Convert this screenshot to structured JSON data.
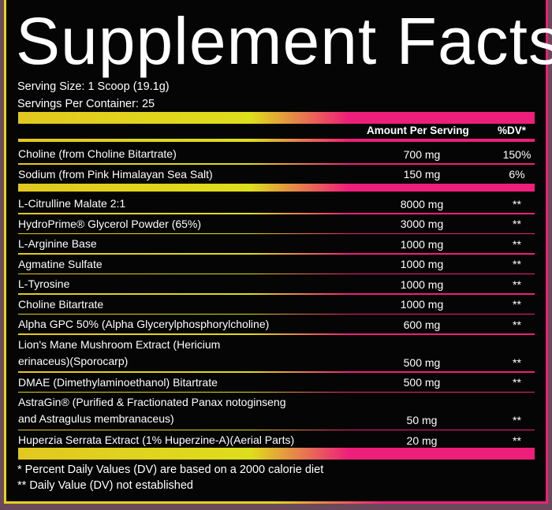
{
  "title": "Supplement Facts",
  "serving_size": "Serving Size: 1 Scoop (19.1g)",
  "servings_per_container": "Servings Per Container: 25",
  "header": {
    "amount": "Amount Per Serving",
    "dv": "%DV*"
  },
  "nutrients": [
    {
      "name": "Choline (from Choline Bitartrate)",
      "amount": "700 mg",
      "dv": "150%"
    },
    {
      "name": "Sodium (from Pink Himalayan Sea Salt)",
      "amount": "150 mg",
      "dv": "6%"
    }
  ],
  "ingredients": [
    {
      "name": "L-Citrulline Malate 2:1",
      "amount": "8000 mg",
      "dv": "**"
    },
    {
      "name": "HydroPrime® Glycerol Powder (65%)",
      "amount": "3000 mg",
      "dv": "**"
    },
    {
      "name": "L-Arginine Base",
      "amount": "1000 mg",
      "dv": "**"
    },
    {
      "name": "Agmatine Sulfate",
      "amount": "1000 mg",
      "dv": "**"
    },
    {
      "name": "L-Tyrosine",
      "amount": "1000 mg",
      "dv": "**"
    },
    {
      "name": "Choline Bitartrate",
      "amount": "1000 mg",
      "dv": "**"
    },
    {
      "name": "Alpha GPC 50% (Alpha Glycerylphosphorylcholine)",
      "amount": "600 mg",
      "dv": "**"
    },
    {
      "name": "Lion's Mane Mushroom Extract (Hericium\nerinaceus)(Sporocarp)",
      "amount": "500 mg",
      "dv": "**"
    },
    {
      "name": "DMAE (Dimethylaminoethanol) Bitartrate",
      "amount": "500 mg",
      "dv": "**"
    },
    {
      "name": "AstraGin® (Purified & Fractionated Panax notoginseng\nand Astragulus membranaceus)",
      "amount": "50 mg",
      "dv": "**"
    },
    {
      "name": "Huperzia Serrata Extract (1% Huperzine-A)(Aerial Parts)",
      "amount": "20 mg",
      "dv": "**"
    }
  ],
  "footnotes": [
    "* Percent Daily Values (DV) are based on a 2000 calorie diet",
    "** Daily Value (DV) not established"
  ],
  "colors": {
    "yellow": "#e2c81f",
    "pink": "#ee1f7a",
    "background": "#050505"
  }
}
